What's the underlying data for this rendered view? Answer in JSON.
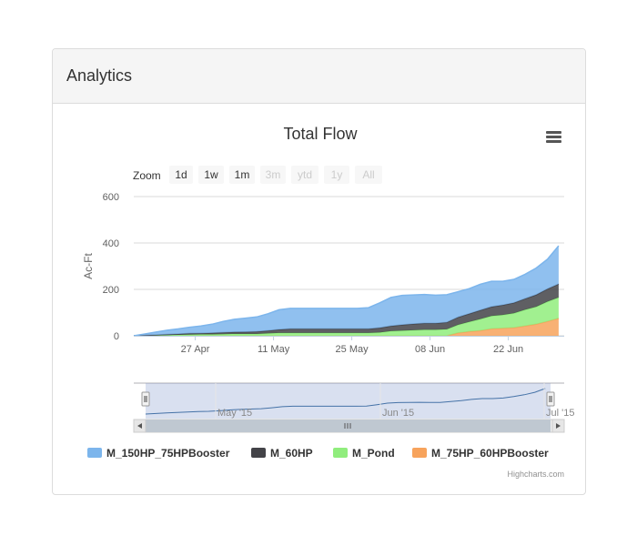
{
  "panel": {
    "title": "Analytics"
  },
  "zoom": {
    "label": "Zoom",
    "buttons": [
      {
        "label": "1d",
        "enabled": true
      },
      {
        "label": "1w",
        "enabled": true
      },
      {
        "label": "1m",
        "enabled": true
      },
      {
        "label": "3m",
        "enabled": false
      },
      {
        "label": "ytd",
        "enabled": false
      },
      {
        "label": "1y",
        "enabled": false
      },
      {
        "label": "All",
        "enabled": false
      }
    ]
  },
  "navigator": {
    "labels": [
      "May '15",
      "Jun '15",
      "Jul '15"
    ]
  },
  "credits": "Highcharts.com",
  "icons": {
    "menu": "hamburger-menu-icon"
  },
  "chart_data": {
    "type": "area",
    "stacked": true,
    "title": "Total Flow",
    "ylabel": "Ac-Ft",
    "xlabel": "",
    "ylim": [
      0,
      600
    ],
    "yticks": [
      0,
      200,
      400,
      600
    ],
    "xlim": [
      "2015-04-16",
      "2015-07-02"
    ],
    "xticks": [
      {
        "date": "2015-04-27",
        "label": "27 Apr"
      },
      {
        "date": "2015-05-11",
        "label": "11 May"
      },
      {
        "date": "2015-05-25",
        "label": "25 May"
      },
      {
        "date": "2015-06-08",
        "label": "08 Jun"
      },
      {
        "date": "2015-06-22",
        "label": "22 Jun"
      }
    ],
    "grid": true,
    "legend_position": "bottom",
    "x": [
      "2015-04-16",
      "2015-04-18",
      "2015-04-20",
      "2015-04-22",
      "2015-04-24",
      "2015-04-26",
      "2015-04-28",
      "2015-04-30",
      "2015-05-02",
      "2015-05-04",
      "2015-05-06",
      "2015-05-08",
      "2015-05-10",
      "2015-05-12",
      "2015-05-14",
      "2015-05-16",
      "2015-05-18",
      "2015-05-20",
      "2015-05-22",
      "2015-05-24",
      "2015-05-26",
      "2015-05-28",
      "2015-05-30",
      "2015-06-01",
      "2015-06-03",
      "2015-06-05",
      "2015-06-07",
      "2015-06-09",
      "2015-06-11",
      "2015-06-13",
      "2015-06-15",
      "2015-06-17",
      "2015-06-19",
      "2015-06-21",
      "2015-06-23",
      "2015-06-25",
      "2015-06-27",
      "2015-06-29",
      "2015-07-01"
    ],
    "series": [
      {
        "name": "M_75HP_60HPBooster",
        "color": "#f7a35c",
        "values": [
          0,
          0,
          0,
          0,
          0,
          0,
          0,
          0,
          0,
          0,
          0,
          0,
          0,
          0,
          0,
          0,
          0,
          0,
          0,
          0,
          0,
          0,
          0,
          0,
          0,
          0,
          0,
          0,
          0,
          12,
          18,
          22,
          30,
          32,
          35,
          42,
          50,
          62,
          75
        ]
      },
      {
        "name": "M_Pond",
        "color": "#90ed7d",
        "values": [
          0,
          1,
          2,
          3,
          4,
          5,
          6,
          6,
          7,
          8,
          8,
          8,
          10,
          12,
          12,
          12,
          12,
          12,
          12,
          12,
          12,
          12,
          14,
          20,
          22,
          24,
          26,
          26,
          28,
          35,
          42,
          50,
          55,
          58,
          62,
          70,
          75,
          85,
          90
        ]
      },
      {
        "name": "M_60HP",
        "color": "#434348",
        "values": [
          0,
          1,
          2,
          3,
          4,
          5,
          5,
          6,
          7,
          8,
          9,
          10,
          12,
          15,
          18,
          18,
          18,
          18,
          18,
          18,
          18,
          18,
          20,
          22,
          25,
          27,
          28,
          28,
          30,
          33,
          35,
          38,
          40,
          42,
          45,
          48,
          52,
          55,
          58
        ]
      },
      {
        "name": "M_150HP_75HPBooster",
        "color": "#7cb5ec",
        "values": [
          0,
          6,
          12,
          18,
          22,
          27,
          31,
          38,
          48,
          55,
          59,
          63,
          73,
          85,
          88,
          88,
          88,
          88,
          88,
          88,
          88,
          91,
          108,
          123,
          127,
          125,
          124,
          121,
          119,
          110,
          108,
          112,
          110,
          103,
          101,
          105,
          115,
          128,
          165
        ]
      }
    ]
  }
}
